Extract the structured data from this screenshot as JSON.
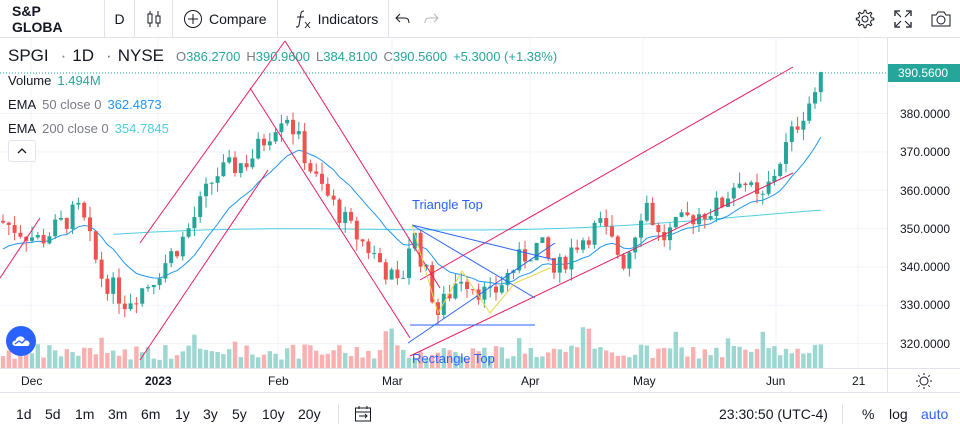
{
  "toolbar": {
    "symbol": "S&P GLOBA",
    "interval": "D",
    "compare_label": "Compare",
    "indicators_label": "Indicators"
  },
  "legend": {
    "symbol": "SPGI",
    "sep1": "·",
    "interval": "1D",
    "sep2": "·",
    "exchange": "NYSE",
    "o_key": "O",
    "o_val": "386.2700",
    "h_key": "H",
    "h_val": "390.9600",
    "l_key": "L",
    "l_val": "384.8100",
    "c_key": "C",
    "c_val": "390.5600",
    "change": "+5.3000 (+1.38%)",
    "volume_label": "Volume",
    "volume_value": "1.494M",
    "ema50_label": "EMA",
    "ema50_params": "50 close 0",
    "ema50_value": "362.4873",
    "ema200_label": "EMA",
    "ema200_params": "200 close 0",
    "ema200_value": "354.7845"
  },
  "drawings": {
    "triangle_label": "Triangle Top",
    "rectangle_label": "Rectangle Top"
  },
  "price_scale": {
    "ticks": [
      "380.0000",
      "370.0000",
      "360.0000",
      "350.0000",
      "340.0000",
      "330.0000",
      "320.0000"
    ],
    "current": "390.5600"
  },
  "time_scale": [
    "Dec",
    "2023",
    "Feb",
    "Mar",
    "Apr",
    "May",
    "Jun",
    "21"
  ],
  "bottom": {
    "ranges": [
      "1d",
      "5d",
      "1m",
      "3m",
      "6m",
      "1y",
      "3y",
      "5y",
      "10y",
      "20y"
    ],
    "clock": "23:30:50 (UTC-4)",
    "percent": "%",
    "log": "log",
    "auto": "auto"
  },
  "colors": {
    "up": "#26a69a",
    "down": "#ef5350",
    "ema50": "#2196f3",
    "ema200": "#4dd0e1",
    "channel": "#e91e63",
    "accent": "#2962ff"
  }
}
